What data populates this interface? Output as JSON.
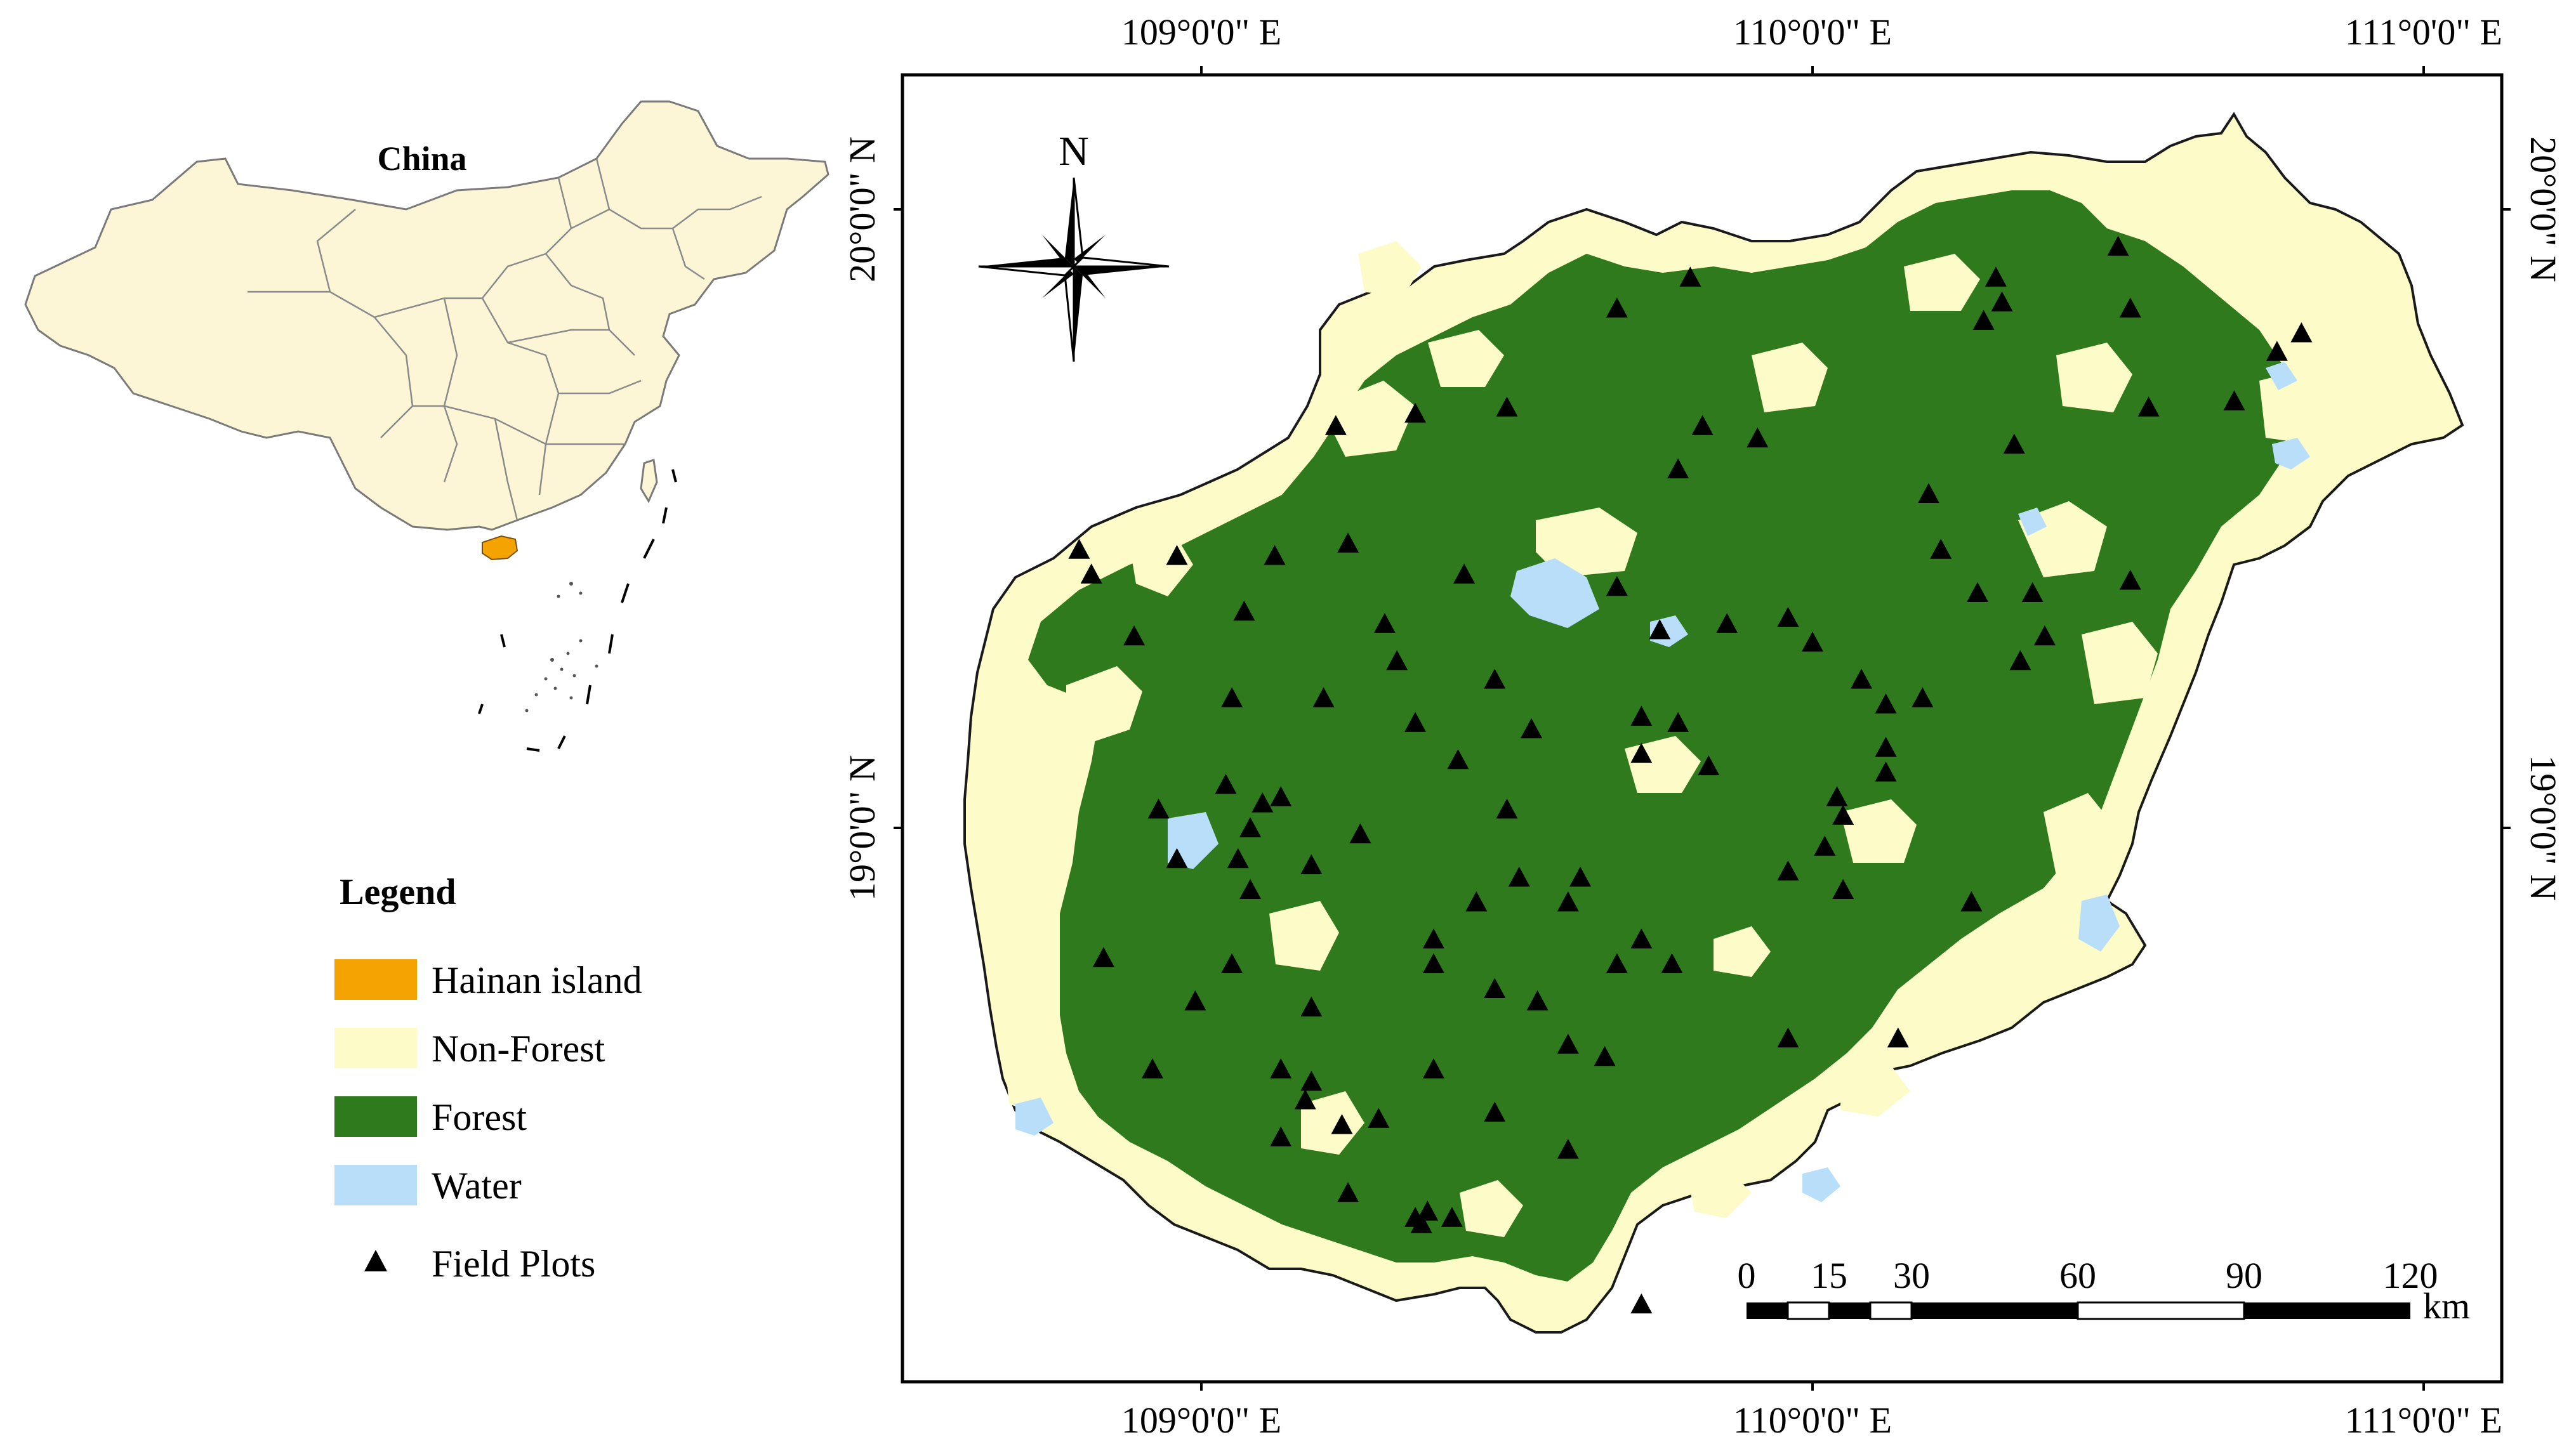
{
  "inset_map": {
    "label": "China",
    "colors": {
      "land": "#fcf6d6",
      "border": "#8a8a8a",
      "hainan": "#f5a300"
    }
  },
  "legend": {
    "title": "Legend",
    "items": [
      {
        "label": "Hainan island",
        "color": "#f5a300",
        "kind": "swatch"
      },
      {
        "label": "Non-Forest",
        "color": "#fdfcc8",
        "kind": "swatch"
      },
      {
        "label": "Forest",
        "color": "#2e7a1c",
        "kind": "swatch"
      },
      {
        "label": "Water",
        "color": "#b8defa",
        "kind": "swatch"
      },
      {
        "label": "Field Plots",
        "color": "#000000",
        "kind": "triangle"
      }
    ]
  },
  "main_map": {
    "longitude_labels": [
      "109°0'0\" E",
      "110°0'0\" E",
      "111°0'0\" E"
    ],
    "latitude_labels": [
      "20°0'0\" N",
      "19°0'0\" N"
    ],
    "north_arrow_label": "N",
    "scale_bar": {
      "ticks": [
        "0",
        "15",
        "30",
        "60",
        "90",
        "120"
      ],
      "unit": "km"
    },
    "colors": {
      "forest": "#2e7a1c",
      "non_forest": "#fdfcc8",
      "water": "#b8defa",
      "plot": "#000000"
    },
    "field_plots": [
      {
        "lon": 109.54,
        "lat": 19.16
      },
      {
        "lon": 109.48,
        "lat": 19.24
      },
      {
        "lon": 109.24,
        "lat": 19.46
      },
      {
        "lon": 109.12,
        "lat": 19.44
      },
      {
        "lon": 108.96,
        "lat": 19.44
      },
      {
        "lon": 108.82,
        "lat": 19.41
      },
      {
        "lon": 108.8,
        "lat": 19.45
      },
      {
        "lon": 108.89,
        "lat": 19.31
      },
      {
        "lon": 109.07,
        "lat": 19.35
      },
      {
        "lon": 109.3,
        "lat": 19.33
      },
      {
        "lon": 109.32,
        "lat": 19.27
      },
      {
        "lon": 109.43,
        "lat": 19.41
      },
      {
        "lon": 109.68,
        "lat": 19.39
      },
      {
        "lon": 109.75,
        "lat": 19.32
      },
      {
        "lon": 109.86,
        "lat": 19.33
      },
      {
        "lon": 109.96,
        "lat": 19.34
      },
      {
        "lon": 110.0,
        "lat": 19.3
      },
      {
        "lon": 109.78,
        "lat": 19.58
      },
      {
        "lon": 109.82,
        "lat": 19.65
      },
      {
        "lon": 109.91,
        "lat": 19.63
      },
      {
        "lon": 109.5,
        "lat": 19.68
      },
      {
        "lon": 109.35,
        "lat": 19.67
      },
      {
        "lon": 109.22,
        "lat": 19.65
      },
      {
        "lon": 109.68,
        "lat": 19.84
      },
      {
        "lon": 109.8,
        "lat": 19.89
      },
      {
        "lon": 110.19,
        "lat": 19.54
      },
      {
        "lon": 110.21,
        "lat": 19.45
      },
      {
        "lon": 110.27,
        "lat": 19.38
      },
      {
        "lon": 110.36,
        "lat": 19.38
      },
      {
        "lon": 110.34,
        "lat": 19.27
      },
      {
        "lon": 110.08,
        "lat": 19.24
      },
      {
        "lon": 110.12,
        "lat": 19.2
      },
      {
        "lon": 110.18,
        "lat": 19.21
      },
      {
        "lon": 110.12,
        "lat": 19.13
      },
      {
        "lon": 110.12,
        "lat": 19.09
      },
      {
        "lon": 110.04,
        "lat": 19.05
      },
      {
        "lon": 110.05,
        "lat": 19.02
      },
      {
        "lon": 110.02,
        "lat": 18.97
      },
      {
        "lon": 109.96,
        "lat": 18.93
      },
      {
        "lon": 110.05,
        "lat": 18.9
      },
      {
        "lon": 110.26,
        "lat": 18.88
      },
      {
        "lon": 110.26,
        "lat": 18.88
      },
      {
        "lon": 110.38,
        "lat": 19.31
      },
      {
        "lon": 110.52,
        "lat": 19.4
      },
      {
        "lon": 110.69,
        "lat": 19.69
      },
      {
        "lon": 110.55,
        "lat": 19.68
      },
      {
        "lon": 110.33,
        "lat": 19.62
      },
      {
        "lon": 110.28,
        "lat": 19.82
      },
      {
        "lon": 110.3,
        "lat": 19.89
      },
      {
        "lon": 110.31,
        "lat": 19.85
      },
      {
        "lon": 110.5,
        "lat": 19.94
      },
      {
        "lon": 110.52,
        "lat": 19.84
      },
      {
        "lon": 110.76,
        "lat": 19.77
      },
      {
        "lon": 110.8,
        "lat": 19.8
      },
      {
        "lon": 109.96,
        "lat": 18.66
      },
      {
        "lon": 110.14,
        "lat": 18.66
      },
      {
        "lon": 109.72,
        "lat": 18.82
      },
      {
        "lon": 109.68,
        "lat": 18.78
      },
      {
        "lon": 109.77,
        "lat": 18.78
      },
      {
        "lon": 109.62,
        "lat": 18.92
      },
      {
        "lon": 109.6,
        "lat": 18.88
      },
      {
        "lon": 109.52,
        "lat": 18.92
      },
      {
        "lon": 109.45,
        "lat": 18.88
      },
      {
        "lon": 109.38,
        "lat": 18.78
      },
      {
        "lon": 109.48,
        "lat": 18.74
      },
      {
        "lon": 109.55,
        "lat": 18.72
      },
      {
        "lon": 109.5,
        "lat": 19.03
      },
      {
        "lon": 109.42,
        "lat": 19.11
      },
      {
        "lon": 109.26,
        "lat": 18.99
      },
      {
        "lon": 109.18,
        "lat": 18.94
      },
      {
        "lon": 109.06,
        "lat": 18.95
      },
      {
        "lon": 109.08,
        "lat": 19.0
      },
      {
        "lon": 109.13,
        "lat": 19.05
      },
      {
        "lon": 109.04,
        "lat": 19.07
      },
      {
        "lon": 108.93,
        "lat": 19.03
      },
      {
        "lon": 108.96,
        "lat": 18.95
      },
      {
        "lon": 108.84,
        "lat": 18.79
      },
      {
        "lon": 108.92,
        "lat": 18.61
      },
      {
        "lon": 108.99,
        "lat": 18.72
      },
      {
        "lon": 109.18,
        "lat": 18.71
      },
      {
        "lon": 109.13,
        "lat": 18.61
      },
      {
        "lon": 109.18,
        "lat": 18.59
      },
      {
        "lon": 109.17,
        "lat": 18.56
      },
      {
        "lon": 109.13,
        "lat": 18.5
      },
      {
        "lon": 109.23,
        "lat": 18.52
      },
      {
        "lon": 109.29,
        "lat": 18.53
      },
      {
        "lon": 109.38,
        "lat": 18.61
      },
      {
        "lon": 109.48,
        "lat": 18.54
      },
      {
        "lon": 109.6,
        "lat": 18.48
      },
      {
        "lon": 109.6,
        "lat": 18.65
      },
      {
        "lon": 109.66,
        "lat": 18.63
      },
      {
        "lon": 109.24,
        "lat": 18.41
      },
      {
        "lon": 109.35,
        "lat": 18.37
      },
      {
        "lon": 109.37,
        "lat": 18.38
      },
      {
        "lon": 109.41,
        "lat": 18.37
      },
      {
        "lon": 109.36,
        "lat": 18.36
      },
      {
        "lon": 109.72,
        "lat": 18.23
      },
      {
        "lon": 109.83,
        "lat": 19.1
      },
      {
        "lon": 109.78,
        "lat": 19.17
      },
      {
        "lon": 109.72,
        "lat": 19.12
      },
      {
        "lon": 109.72,
        "lat": 19.18
      },
      {
        "lon": 109.2,
        "lat": 19.21
      },
      {
        "lon": 109.05,
        "lat": 19.21
      },
      {
        "lon": 109.35,
        "lat": 19.17
      },
      {
        "lon": 109.1,
        "lat": 19.04
      },
      {
        "lon": 109.08,
        "lat": 18.9
      },
      {
        "lon": 109.05,
        "lat": 18.78
      },
      {
        "lon": 109.38,
        "lat": 18.82
      }
    ]
  }
}
